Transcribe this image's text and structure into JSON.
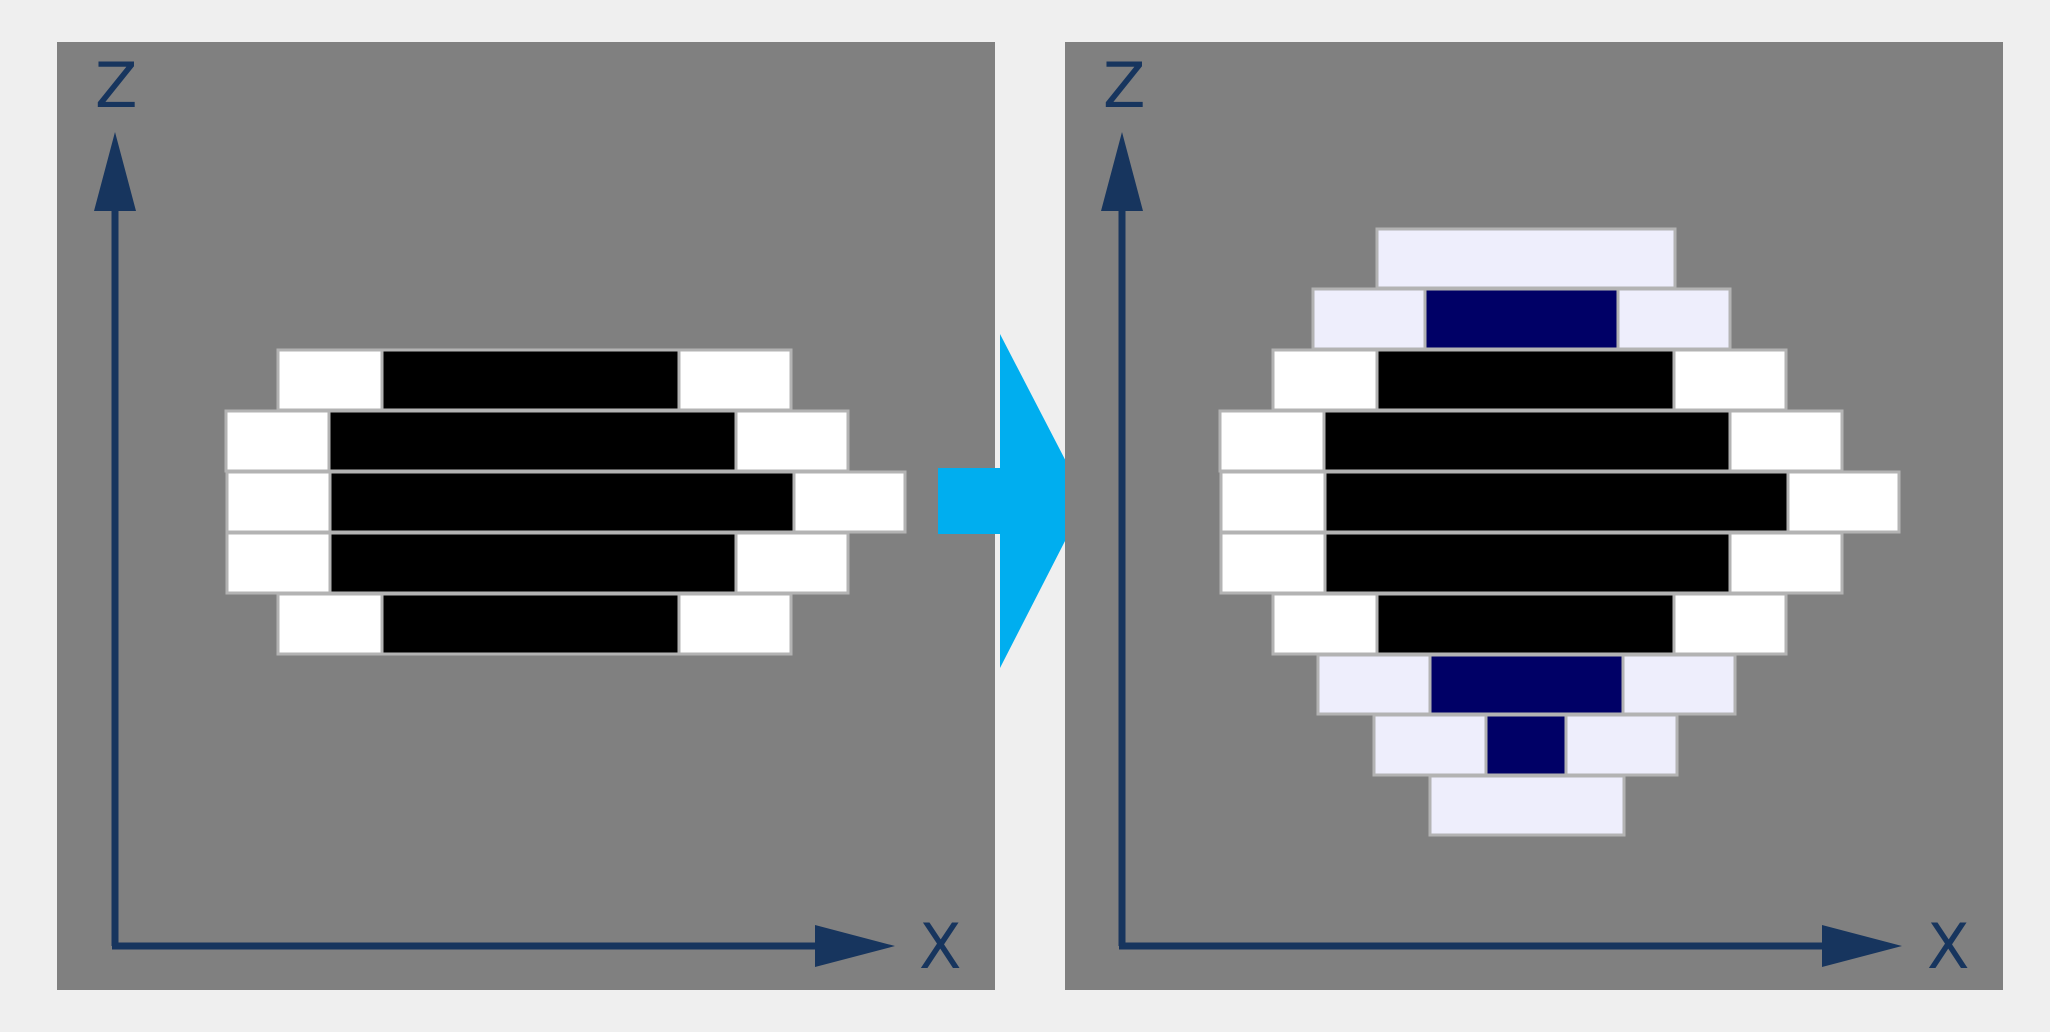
{
  "colors": {
    "page_background": "#efefef",
    "panel_background": "#808080",
    "axis": "#17355e",
    "arrow": "#00aeef",
    "cell_border": "#b3b3b3",
    "cell_white": "#ffffff",
    "cell_black": "#000000",
    "cell_light": "#eeeefc",
    "cell_navy": "#000066"
  },
  "left_panel": {
    "axis_z_label": "Z",
    "axis_x_label": "X"
  },
  "right_panel": {
    "axis_z_label": "Z",
    "axis_x_label": "X"
  },
  "transition_arrow": {
    "icon": "right-arrow-icon"
  }
}
